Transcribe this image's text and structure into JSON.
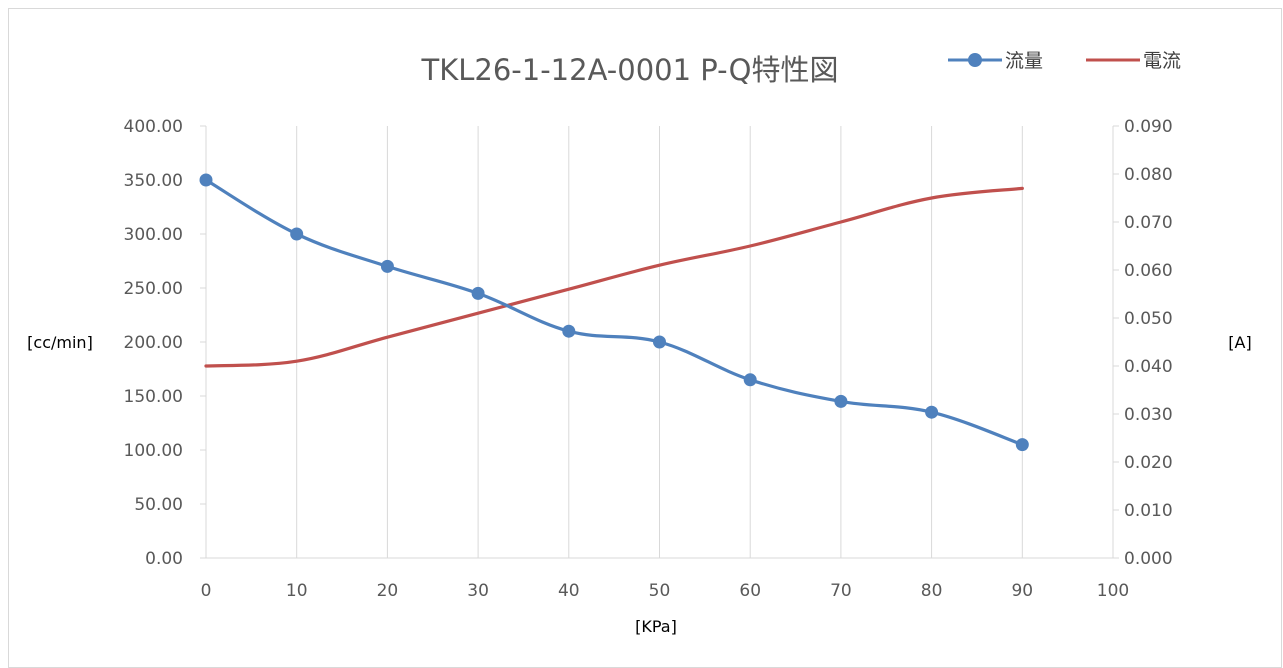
{
  "chart_data": {
    "type": "line",
    "title": "TKL26-1-12A-0001 P-Q特性図",
    "xlabel": "[KPa]",
    "ylabel_left": "[cc/min]",
    "ylabel_right": "[A]",
    "xlim": [
      0,
      100
    ],
    "ylim_left": [
      0,
      400
    ],
    "ylim_right": [
      0,
      0.09
    ],
    "x_ticks": [
      "0",
      "10",
      "20",
      "30",
      "40",
      "50",
      "60",
      "70",
      "80",
      "90",
      "100"
    ],
    "y_left_ticks": [
      "0.00",
      "50.00",
      "100.00",
      "150.00",
      "200.00",
      "250.00",
      "300.00",
      "350.00",
      "400.00"
    ],
    "y_right_ticks": [
      "0.000",
      "0.010",
      "0.020",
      "0.030",
      "0.040",
      "0.050",
      "0.060",
      "0.070",
      "0.080",
      "0.090"
    ],
    "grid": "vertical",
    "legend_position": "top-right",
    "x": [
      0,
      10,
      20,
      30,
      40,
      50,
      60,
      70,
      80,
      90
    ],
    "series": [
      {
        "name": "流量",
        "axis": "left",
        "color": "#4f81bd",
        "markers": true,
        "values": [
          350,
          300,
          270,
          245,
          210,
          200,
          165,
          145,
          135,
          105
        ]
      },
      {
        "name": "電流",
        "axis": "right",
        "color": "#c0504d",
        "markers": false,
        "values": [
          0.04,
          0.041,
          0.046,
          0.051,
          0.056,
          0.061,
          0.065,
          0.07,
          0.075,
          0.077
        ]
      }
    ]
  }
}
